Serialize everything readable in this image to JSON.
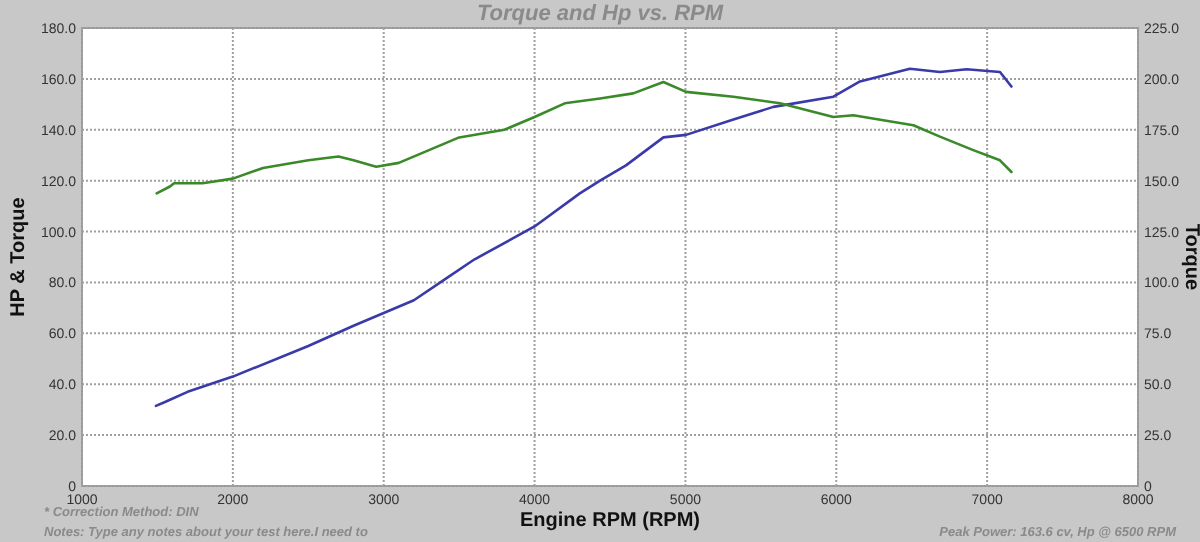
{
  "chart_data": {
    "type": "line",
    "title": "Torque and Hp vs. RPM",
    "xlabel": "Engine RPM (RPM)",
    "ylabel": "HP & Torque",
    "y2label": "Torque",
    "xlim": [
      1000,
      8000
    ],
    "xticks": [
      1000,
      2000,
      3000,
      4000,
      5000,
      6000,
      7000,
      8000
    ],
    "ylim": [
      0,
      180
    ],
    "yticks": [
      0,
      {
        "value": 20,
        "label": "20.0"
      },
      {
        "value": 40,
        "label": "40.0"
      },
      {
        "value": 60,
        "label": "60.0"
      },
      {
        "value": 80,
        "label": "80.0"
      },
      {
        "value": 100,
        "label": "100.0"
      },
      {
        "value": 120,
        "label": "120.0"
      },
      {
        "value": 140,
        "label": "140.0"
      },
      {
        "value": 160,
        "label": "160.0"
      },
      {
        "value": 180,
        "label": "180.0"
      }
    ],
    "y2lim": [
      0,
      225
    ],
    "y2ticks": [
      0,
      {
        "value": 25,
        "label": "25.0"
      },
      {
        "value": 50,
        "label": "50.0"
      },
      {
        "value": 75,
        "label": "75.0"
      },
      {
        "value": 100,
        "label": "100.0"
      },
      {
        "value": 125,
        "label": "125.0"
      },
      {
        "value": 150,
        "label": "150.0"
      },
      {
        "value": 175,
        "label": "175.0"
      },
      {
        "value": 200,
        "label": "200.0"
      },
      {
        "value": 225,
        "label": "225.0"
      }
    ],
    "grid": true,
    "line_style": "solid",
    "series": [
      {
        "color": "#3a3aa8",
        "x": [
          1490,
          1550,
          1700,
          2000,
          2500,
          2800,
          3000,
          3200,
          3400,
          3600,
          4000,
          4300,
          4434,
          4606,
          4854,
          5004,
          5318,
          5583,
          5981,
          6157,
          6488,
          6687,
          6864,
          7085,
          7161
        ],
        "values": [
          31.5,
          33,
          37,
          43,
          55,
          63,
          68,
          73,
          81,
          89,
          102,
          115,
          120,
          126,
          137,
          138,
          144,
          149,
          153,
          159,
          164,
          162.7,
          163.8,
          162.7,
          157
        ]
      },
      {
        "color": "#3a8a2a",
        "x": [
          1495,
          1583,
          1610,
          1800,
          2000,
          2200,
          2500,
          2700,
          2800,
          2950,
          3100,
          3300,
          3500,
          3800,
          4000,
          4200,
          4434,
          4654,
          4854,
          5004,
          5318,
          5627,
          5981,
          6113,
          6511,
          6687,
          6908,
          7085,
          7161
        ],
        "values": [
          115,
          117.7,
          119,
          119,
          120.8,
          125,
          128,
          129.5,
          128,
          125.5,
          127,
          132,
          137,
          140,
          145,
          150.4,
          152.3,
          154.3,
          158.8,
          154.9,
          153,
          150.4,
          145,
          145.7,
          141.8,
          137.3,
          132,
          128,
          123.4
        ]
      }
    ],
    "annotations": [
      "* Correction Method: DIN",
      "Notes: Type any notes about your test here.I need to",
      "Peak Power: 163.6 cv, Hp @ 6500 RPM"
    ]
  }
}
